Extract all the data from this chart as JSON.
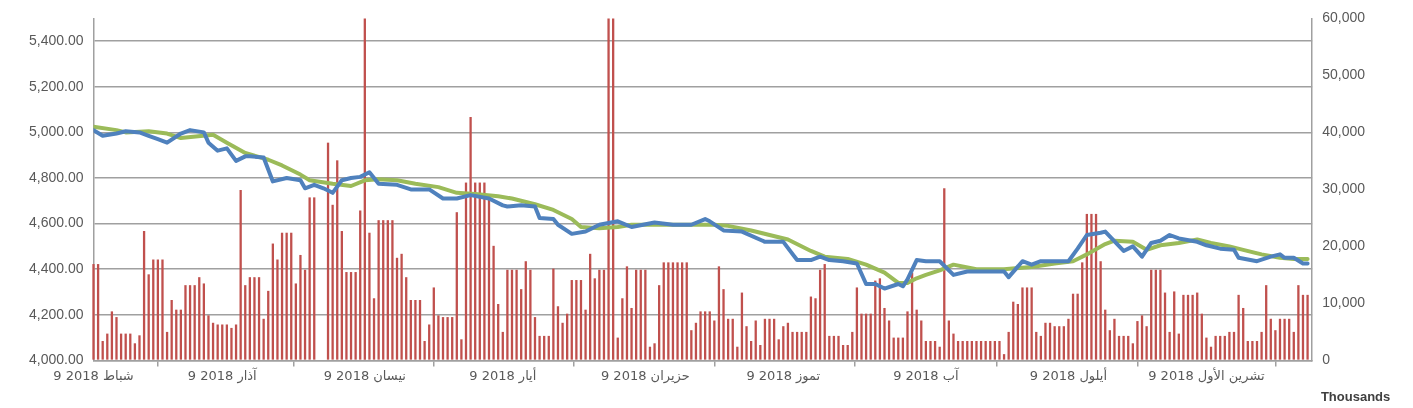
{
  "chart_data": {
    "type": "bar",
    "grid": "y",
    "marker": "none",
    "y2label": "Thousands",
    "xlim": [
      "2018-02-09",
      "2018-11-01"
    ],
    "xticks": [
      {
        "value": "2018-02-09",
        "label": "9 شباط 2018"
      },
      {
        "value": "2018-03-09",
        "label": "9 آذار 2018"
      },
      {
        "value": "2018-04-09",
        "label": "9 نيسان 2018"
      },
      {
        "value": "2018-05-09",
        "label": "9 أيار 2018"
      },
      {
        "value": "2018-06-09",
        "label": "9 حزيران 2018"
      },
      {
        "value": "2018-07-09",
        "label": "9 تموز 2018"
      },
      {
        "value": "2018-08-09",
        "label": "9 آب 2018"
      },
      {
        "value": "2018-09-09",
        "label": "9 أيلول 2018"
      },
      {
        "value": "2018-10-09",
        "label": "9 تشرين الأول 2018"
      }
    ],
    "ylim": [
      4000,
      5500
    ],
    "yticks": [
      {
        "value": 4000,
        "label": "4,000.00"
      },
      {
        "value": 4200,
        "label": "4,200.00"
      },
      {
        "value": 4400,
        "label": "4,400.00"
      },
      {
        "value": 4600,
        "label": "4,600.00"
      },
      {
        "value": 4800,
        "label": "4,800.00"
      },
      {
        "value": 5000,
        "label": "5,000.00"
      },
      {
        "value": 5200,
        "label": "5,200.00"
      },
      {
        "value": 5400,
        "label": "5,400.00"
      }
    ],
    "y2lim": [
      0,
      60000
    ],
    "y2ticks": [
      0,
      {
        "value": 10000,
        "label": "10,000"
      },
      {
        "value": 20000,
        "label": "20,000"
      },
      {
        "value": 30000,
        "label": "30,000"
      },
      {
        "value": 40000,
        "label": "40,000"
      },
      {
        "value": 50000,
        "label": "50,000"
      },
      {
        "value": 60000,
        "label": "60,000"
      }
    ],
    "x": [
      "2018-02-09",
      "2018-02-10",
      "2018-02-11",
      "2018-02-12",
      "2018-02-13",
      "2018-02-14",
      "2018-02-15",
      "2018-02-16",
      "2018-02-17",
      "2018-02-18",
      "2018-02-19",
      "2018-02-20",
      "2018-02-21",
      "2018-02-22",
      "2018-02-23",
      "2018-02-24",
      "2018-02-25",
      "2018-02-26",
      "2018-02-27",
      "2018-02-28",
      "2018-03-01",
      "2018-03-02",
      "2018-03-03",
      "2018-03-04",
      "2018-03-05",
      "2018-03-06",
      "2018-03-07",
      "2018-03-08",
      "2018-03-09",
      "2018-03-10",
      "2018-03-11",
      "2018-03-12",
      "2018-03-13",
      "2018-03-14",
      "2018-03-15",
      "2018-03-16",
      "2018-03-17",
      "2018-03-18",
      "2018-03-19",
      "2018-03-20",
      "2018-03-21",
      "2018-03-22",
      "2018-03-23",
      "2018-03-24",
      "2018-03-25",
      "2018-03-26",
      "2018-03-27",
      "2018-03-28",
      "2018-03-29",
      "2018-03-30",
      "2018-03-31",
      "2018-04-01",
      "2018-04-02",
      "2018-04-03",
      "2018-04-04",
      "2018-04-05",
      "2018-04-06",
      "2018-04-07",
      "2018-04-08",
      "2018-04-09",
      "2018-04-10",
      "2018-04-11",
      "2018-04-12",
      "2018-04-13",
      "2018-04-14",
      "2018-04-15",
      "2018-04-16",
      "2018-04-17",
      "2018-04-18",
      "2018-04-19",
      "2018-04-20",
      "2018-04-21",
      "2018-04-22",
      "2018-04-23",
      "2018-04-24",
      "2018-04-25",
      "2018-04-26",
      "2018-04-27",
      "2018-04-28",
      "2018-04-29",
      "2018-04-30",
      "2018-05-01",
      "2018-05-02",
      "2018-05-03",
      "2018-05-04",
      "2018-05-05",
      "2018-05-06",
      "2018-05-07",
      "2018-05-08",
      "2018-05-09",
      "2018-05-10",
      "2018-05-11",
      "2018-05-12",
      "2018-05-13",
      "2018-05-14",
      "2018-05-15",
      "2018-05-16",
      "2018-05-17",
      "2018-05-18",
      "2018-05-19",
      "2018-05-20",
      "2018-05-21",
      "2018-05-22",
      "2018-05-23",
      "2018-05-24",
      "2018-05-25",
      "2018-05-26",
      "2018-05-27",
      "2018-05-28",
      "2018-05-29",
      "2018-05-30",
      "2018-05-31",
      "2018-06-01",
      "2018-06-02",
      "2018-06-03",
      "2018-06-04",
      "2018-06-05",
      "2018-06-06",
      "2018-06-07",
      "2018-06-08",
      "2018-06-09",
      "2018-06-10",
      "2018-06-11",
      "2018-06-12",
      "2018-06-13",
      "2018-06-14",
      "2018-06-15",
      "2018-06-16",
      "2018-06-17",
      "2018-06-18",
      "2018-06-19",
      "2018-06-20",
      "2018-06-21",
      "2018-06-22",
      "2018-06-23",
      "2018-06-24",
      "2018-06-25",
      "2018-06-26",
      "2018-06-27",
      "2018-06-28",
      "2018-06-29",
      "2018-06-30",
      "2018-07-01",
      "2018-07-02",
      "2018-07-03",
      "2018-07-04",
      "2018-07-05",
      "2018-07-06",
      "2018-07-07",
      "2018-07-08",
      "2018-07-09",
      "2018-07-10",
      "2018-07-11",
      "2018-07-12",
      "2018-07-13",
      "2018-07-14",
      "2018-07-15",
      "2018-07-16",
      "2018-07-17",
      "2018-07-18",
      "2018-07-19",
      "2018-07-20",
      "2018-07-21",
      "2018-07-22",
      "2018-07-23",
      "2018-07-24",
      "2018-07-25",
      "2018-07-26",
      "2018-07-27",
      "2018-07-28",
      "2018-07-29",
      "2018-07-30",
      "2018-07-31",
      "2018-08-01",
      "2018-08-02",
      "2018-08-03",
      "2018-08-04",
      "2018-08-05",
      "2018-08-06",
      "2018-08-07",
      "2018-08-08",
      "2018-08-09",
      "2018-08-10",
      "2018-08-11",
      "2018-08-12",
      "2018-08-13",
      "2018-08-14",
      "2018-08-15",
      "2018-08-16",
      "2018-08-17",
      "2018-08-18",
      "2018-08-19",
      "2018-08-20",
      "2018-08-21",
      "2018-08-22",
      "2018-08-23",
      "2018-08-24",
      "2018-08-25",
      "2018-08-26",
      "2018-08-27",
      "2018-08-28",
      "2018-08-29",
      "2018-08-30",
      "2018-08-31",
      "2018-09-01",
      "2018-09-02",
      "2018-09-03",
      "2018-09-04",
      "2018-09-05",
      "2018-09-06",
      "2018-09-07",
      "2018-09-08",
      "2018-09-09",
      "2018-09-10",
      "2018-09-11",
      "2018-09-12",
      "2018-09-13",
      "2018-09-14",
      "2018-09-15",
      "2018-09-16",
      "2018-09-17",
      "2018-09-18",
      "2018-09-19",
      "2018-09-20",
      "2018-09-21",
      "2018-09-22",
      "2018-09-23",
      "2018-09-24",
      "2018-09-25",
      "2018-09-26",
      "2018-09-27",
      "2018-09-28",
      "2018-09-29",
      "2018-09-30",
      "2018-10-01",
      "2018-10-02",
      "2018-10-03",
      "2018-10-04",
      "2018-10-05",
      "2018-10-06",
      "2018-10-07",
      "2018-10-08",
      "2018-10-09",
      "2018-10-10",
      "2018-10-11",
      "2018-10-12",
      "2018-10-13",
      "2018-10-14",
      "2018-10-15",
      "2018-10-16",
      "2018-10-17",
      "2018-10-18",
      "2018-10-19",
      "2018-10-20",
      "2018-10-21",
      "2018-10-22",
      "2018-10-23",
      "2018-10-24",
      "2018-10-25",
      "2018-10-26",
      "2018-10-27",
      "2018-10-28",
      "2018-10-29",
      "2018-10-30",
      "2018-10-31"
    ],
    "series": [
      {
        "axis": "y2",
        "color": "#c0504d",
        "values": [
          16900,
          16900,
          3400,
          4700,
          8600,
          7600,
          4700,
          4700,
          4700,
          3000,
          4400,
          22700,
          15100,
          17700,
          17700,
          17700,
          5000,
          10600,
          8900,
          8900,
          13200,
          13200,
          13200,
          14600,
          13500,
          7900,
          6600,
          6300,
          6300,
          6300,
          5700,
          6300,
          29900,
          13200,
          14600,
          14600,
          14600,
          7300,
          12200,
          20500,
          17700,
          22400,
          22400,
          22400,
          13500,
          18500,
          15900,
          28600,
          28600,
          0,
          0,
          38200,
          27300,
          35100,
          22700,
          15500,
          15500,
          15500,
          26300,
          60000,
          22400,
          10900,
          24600,
          24600,
          24600,
          24600,
          18000,
          18700,
          14600,
          10600,
          10600,
          10600,
          3400,
          6300,
          12800,
          7900,
          7600,
          7600,
          7600,
          26000,
          3700,
          31200,
          42700,
          31200,
          31200,
          31200,
          28600,
          20100,
          9900,
          5000,
          15900,
          15900,
          15900,
          12500,
          17400,
          15900,
          7600,
          4300,
          4300,
          4300,
          16100,
          9500,
          6600,
          8200,
          14100,
          14100,
          14100,
          8900,
          18700,
          14400,
          15900,
          15900,
          60000,
          60000,
          4000,
          10900,
          16500,
          9200,
          15900,
          15900,
          15900,
          2400,
          3000,
          13200,
          17200,
          17200,
          17200,
          17200,
          17200,
          17200,
          5300,
          6600,
          8600,
          8600,
          8600,
          7000,
          16500,
          12500,
          7300,
          7300,
          2400,
          11900,
          6000,
          3400,
          7000,
          2700,
          7300,
          7300,
          7300,
          3700,
          6000,
          6600,
          5000,
          5000,
          5000,
          5000,
          11200,
          10900,
          15900,
          16900,
          4300,
          4300,
          4300,
          2700,
          2700,
          5000,
          12800,
          8200,
          8200,
          8200,
          14000,
          14400,
          9200,
          7000,
          4000,
          4000,
          4000,
          8600,
          15400,
          8900,
          7000,
          3400,
          3400,
          3400,
          2400,
          30200,
          7000,
          4700,
          3400,
          3400,
          3400,
          3400,
          3400,
          3400,
          3400,
          3400,
          3400,
          3400,
          1100,
          5000,
          10300,
          9900,
          12800,
          12800,
          12800,
          5000,
          4300,
          6600,
          6600,
          6000,
          6000,
          6000,
          7300,
          11700,
          11700,
          17200,
          25700,
          25700,
          25700,
          17400,
          8900,
          5300,
          7300,
          4300,
          4300,
          4300,
          3000,
          6900,
          7900,
          6000,
          15900,
          15900,
          15900,
          11900,
          5000,
          12100,
          4700,
          11500,
          11500,
          11500,
          11900,
          8200,
          4000,
          2400,
          4300,
          4300,
          4300,
          5000,
          5000,
          11500,
          9200,
          3400,
          3400,
          3400,
          5000,
          13200,
          7300,
          5300,
          7300,
          7300,
          7300,
          5000,
          13200,
          11500,
          11500
        ]
      },
      {
        "type": "line",
        "axis": "y",
        "color": "#4f81bd",
        "x": [
          "2018-02-09",
          "2018-02-11",
          "2018-02-14",
          "2018-02-16",
          "2018-02-19",
          "2018-02-21",
          "2018-02-23",
          "2018-02-25",
          "2018-02-28",
          "2018-03-02",
          "2018-03-05",
          "2018-03-06",
          "2018-03-08",
          "2018-03-10",
          "2018-03-12",
          "2018-03-14",
          "2018-03-15",
          "2018-03-18",
          "2018-03-20",
          "2018-03-23",
          "2018-03-26",
          "2018-03-27",
          "2018-03-29",
          "2018-03-31",
          "2018-04-02",
          "2018-04-04",
          "2018-04-06",
          "2018-04-08",
          "2018-04-10",
          "2018-04-12",
          "2018-04-16",
          "2018-04-19",
          "2018-04-23",
          "2018-04-26",
          "2018-04-29",
          "2018-05-02",
          "2018-05-06",
          "2018-05-09",
          "2018-05-10",
          "2018-05-13",
          "2018-05-16",
          "2018-05-17",
          "2018-05-20",
          "2018-05-21",
          "2018-05-24",
          "2018-05-27",
          "2018-05-30",
          "2018-06-03",
          "2018-06-06",
          "2018-06-11",
          "2018-06-15",
          "2018-06-19",
          "2018-06-22",
          "2018-06-23",
          "2018-06-26",
          "2018-06-30",
          "2018-07-05",
          "2018-07-09",
          "2018-07-12",
          "2018-07-15",
          "2018-07-17",
          "2018-07-19",
          "2018-07-22",
          "2018-07-25",
          "2018-07-27",
          "2018-07-29",
          "2018-07-31",
          "2018-08-03",
          "2018-08-04",
          "2018-08-05",
          "2018-08-07",
          "2018-08-09",
          "2018-08-10",
          "2018-08-12",
          "2018-08-15",
          "2018-08-18",
          "2018-08-23",
          "2018-08-26",
          "2018-08-27",
          "2018-08-30",
          "2018-09-01",
          "2018-09-03",
          "2018-09-06",
          "2018-09-09",
          "2018-09-11",
          "2018-09-13",
          "2018-09-16",
          "2018-09-17",
          "2018-09-21",
          "2018-09-23",
          "2018-09-25",
          "2018-09-27",
          "2018-09-29",
          "2018-10-01",
          "2018-10-03",
          "2018-10-07",
          "2018-10-09",
          "2018-10-12",
          "2018-10-15",
          "2018-10-16",
          "2018-10-20",
          "2018-10-23",
          "2018-10-25",
          "2018-10-26",
          "2018-10-28",
          "2018-10-30",
          "2018-10-31"
        ],
        "values": [
          5010,
          4985,
          4995,
          5005,
          5000,
          4985,
          4970,
          4955,
          4995,
          5010,
          5000,
          4955,
          4920,
          4930,
          4875,
          4895,
          4895,
          4890,
          4785,
          4800,
          4790,
          4755,
          4770,
          4755,
          4735,
          4790,
          4800,
          4805,
          4825,
          4775,
          4770,
          4750,
          4750,
          4710,
          4710,
          4725,
          4710,
          4680,
          4675,
          4680,
          4675,
          4625,
          4620,
          4595,
          4555,
          4565,
          4595,
          4610,
          4585,
          4605,
          4595,
          4595,
          4620,
          4610,
          4570,
          4565,
          4520,
          4520,
          4440,
          4440,
          4455,
          4440,
          4435,
          4425,
          4335,
          4335,
          4315,
          4335,
          4325,
          4355,
          4440,
          4435,
          4435,
          4435,
          4375,
          4390,
          4390,
          4390,
          4365,
          4435,
          4420,
          4435,
          4435,
          4435,
          4490,
          4550,
          4560,
          4565,
          4480,
          4500,
          4455,
          4515,
          4525,
          4550,
          4535,
          4520,
          4505,
          4490,
          4485,
          4450,
          4435,
          4455,
          4465,
          4450,
          4450,
          4425,
          4425
        ]
      },
      {
        "type": "line",
        "axis": "y",
        "color": "#9bbb59",
        "x": [
          "2018-02-09",
          "2018-02-14",
          "2018-02-16",
          "2018-02-21",
          "2018-02-25",
          "2018-02-28",
          "2018-03-07",
          "2018-03-10",
          "2018-03-14",
          "2018-03-19",
          "2018-03-22",
          "2018-03-26",
          "2018-03-28",
          "2018-04-02",
          "2018-04-06",
          "2018-04-09",
          "2018-04-12",
          "2018-04-16",
          "2018-04-20",
          "2018-04-25",
          "2018-04-29",
          "2018-05-03",
          "2018-05-08",
          "2018-05-11",
          "2018-05-16",
          "2018-05-20",
          "2018-05-24",
          "2018-05-26",
          "2018-05-30",
          "2018-06-03",
          "2018-06-06",
          "2018-06-11",
          "2018-06-19",
          "2018-06-24",
          "2018-06-27",
          "2018-07-02",
          "2018-07-06",
          "2018-07-10",
          "2018-07-15",
          "2018-07-18",
          "2018-07-23",
          "2018-07-27",
          "2018-07-31",
          "2018-08-03",
          "2018-08-05",
          "2018-08-07",
          "2018-08-09",
          "2018-08-12",
          "2018-08-15",
          "2018-08-20",
          "2018-08-26",
          "2018-09-01",
          "2018-09-06",
          "2018-09-10",
          "2018-09-13",
          "2018-09-17",
          "2018-09-19",
          "2018-09-23",
          "2018-09-26",
          "2018-09-29",
          "2018-10-03",
          "2018-10-07",
          "2018-10-10",
          "2018-10-14",
          "2018-10-17",
          "2018-10-21",
          "2018-10-25",
          "2018-10-28",
          "2018-10-31"
        ],
        "values": [
          5025,
          5010,
          5000,
          5005,
          4995,
          4975,
          4990,
          4955,
          4910,
          4880,
          4855,
          4815,
          4790,
          4775,
          4765,
          4790,
          4795,
          4790,
          4775,
          4760,
          4735,
          4730,
          4720,
          4710,
          4685,
          4660,
          4620,
          4585,
          4580,
          4585,
          4595,
          4595,
          4595,
          4595,
          4590,
          4570,
          4550,
          4530,
          4480,
          4455,
          4445,
          4420,
          4385,
          4340,
          4340,
          4360,
          4375,
          4395,
          4420,
          4400,
          4400,
          4410,
          4425,
          4435,
          4465,
          4510,
          4525,
          4520,
          4485,
          4505,
          4515,
          4530,
          4515,
          4500,
          4485,
          4465,
          4450,
          4445,
          4445
        ]
      }
    ]
  }
}
